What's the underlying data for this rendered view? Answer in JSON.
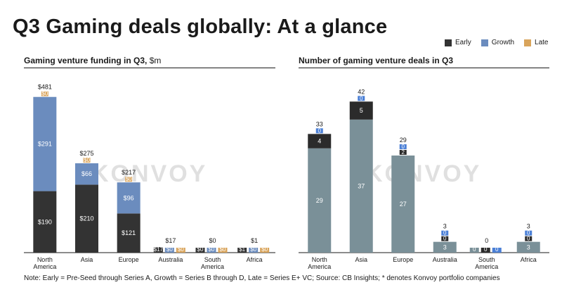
{
  "title": "Q3 Gaming deals globally: At a glance",
  "legend": [
    {
      "label": "Early",
      "color": "#2b2b2b"
    },
    {
      "label": "Growth",
      "color": "#6b8cbe"
    },
    {
      "label": "Late",
      "color": "#d9a45b"
    }
  ],
  "watermark": "KONVOY",
  "note": "Note: Early = Pre-Seed through Series A, Growth = Series B through D, Late = Series E+ VC; Source: CB Insights; * denotes Konvoy portfolio companies",
  "chart_data": [
    {
      "type": "bar",
      "stacked": true,
      "title": "Gaming venture funding in Q3,",
      "unit": "$m",
      "categories": [
        "North America",
        "Asia",
        "Europe",
        "Australia",
        "South America",
        "Africa"
      ],
      "series": [
        {
          "name": "Early",
          "color": "#333333",
          "values": [
            190,
            210,
            121,
            17,
            0,
            1
          ],
          "labels": [
            "$190",
            "$210",
            "$121",
            "$17",
            "$0",
            "$1"
          ]
        },
        {
          "name": "Growth",
          "color": "#6b8cbe",
          "values": [
            291,
            66,
            96,
            0,
            0,
            0
          ],
          "labels": [
            "$291",
            "$66",
            "$96",
            "$0",
            "$0",
            "$0"
          ]
        },
        {
          "name": "Late",
          "color": "#d9a45b",
          "values": [
            0,
            0,
            0,
            0,
            0,
            0
          ],
          "labels": [
            "$0",
            "$0",
            "$0",
            "$0",
            "$0",
            "$0"
          ]
        }
      ],
      "totals": [
        "$481",
        "$275",
        "$217",
        "$17",
        "$0",
        "$1"
      ],
      "ylim": [
        0,
        500
      ]
    },
    {
      "type": "bar",
      "stacked": true,
      "title": "Number of gaming venture deals in Q3",
      "categories": [
        "North America",
        "Asia",
        "Europe",
        "Australia",
        "South America",
        "Africa"
      ],
      "series": [
        {
          "name": "Early",
          "color": "#7a9098",
          "values": [
            29,
            37,
            27,
            3,
            0,
            3
          ],
          "labels": [
            "29",
            "37",
            "27",
            "3",
            "0",
            "3"
          ]
        },
        {
          "name": "Growth",
          "color": "#2b2b2b",
          "values": [
            4,
            5,
            2,
            0,
            0,
            0
          ],
          "labels": [
            "4",
            "5",
            "2",
            "0",
            "0",
            "0"
          ]
        },
        {
          "name": "Late",
          "color": "#4a7fd6",
          "values": [
            0,
            0,
            0,
            0,
            0,
            0
          ],
          "labels": [
            "0",
            "0",
            "0",
            "0",
            "0",
            "0"
          ]
        }
      ],
      "totals": [
        "33",
        "42",
        "29",
        "3",
        "0",
        "3"
      ],
      "ylim": [
        0,
        45
      ]
    }
  ]
}
